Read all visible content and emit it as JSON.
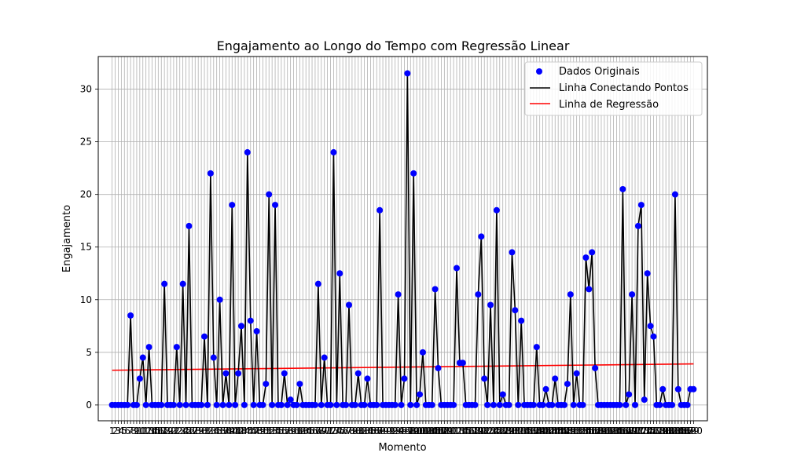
{
  "chart_data": {
    "type": "scatter",
    "title": "Engajamento ao Longo do Tempo com Regressão Linear",
    "xlabel": "Momento",
    "ylabel": "Engajamento",
    "xlim": [
      -3.5,
      194.5
    ],
    "ylim": [
      -1.5,
      33.1
    ],
    "y_ticks": [
      0,
      5,
      10,
      15,
      20,
      25,
      30
    ],
    "grid": true,
    "legend_position": "top-right",
    "x": [
      1,
      2,
      3,
      4,
      5,
      6,
      7,
      8,
      9,
      10,
      11,
      12,
      13,
      14,
      15,
      16,
      17,
      18,
      19,
      20,
      21,
      22,
      23,
      24,
      25,
      26,
      27,
      28,
      29,
      30,
      31,
      32,
      33,
      34,
      35,
      36,
      37,
      38,
      39,
      40,
      41,
      42,
      43,
      44,
      45,
      46,
      47,
      48,
      49,
      50,
      51,
      52,
      53,
      54,
      55,
      56,
      57,
      58,
      59,
      60,
      61,
      62,
      63,
      64,
      65,
      66,
      67,
      68,
      69,
      70,
      71,
      72,
      73,
      74,
      75,
      76,
      77,
      78,
      79,
      80,
      81,
      82,
      83,
      84,
      85,
      86,
      87,
      88,
      89,
      90,
      91,
      92,
      93,
      94,
      95,
      96,
      97,
      98,
      99,
      100,
      101,
      102,
      103,
      104,
      105,
      106,
      107,
      108,
      109,
      110,
      111,
      112,
      113,
      114,
      115,
      116,
      117,
      118,
      119,
      120,
      121,
      122,
      123,
      124,
      125,
      126,
      127,
      128,
      129,
      130,
      131,
      132,
      133,
      134,
      135,
      136,
      137,
      138,
      139,
      140,
      141,
      142,
      143,
      144,
      145,
      146,
      147,
      148,
      149,
      150,
      151,
      152,
      153,
      154,
      155,
      156,
      157,
      158,
      159,
      160,
      161,
      162,
      163,
      164,
      165,
      166,
      167,
      168,
      169,
      170,
      171,
      172,
      173,
      174,
      175,
      176,
      177,
      178,
      179,
      180,
      181,
      182,
      183,
      184,
      185,
      186,
      187,
      188,
      189,
      190
    ],
    "y": [
      0,
      0,
      0,
      0,
      0,
      0,
      8.5,
      0,
      0,
      2.5,
      4.5,
      0,
      5.5,
      0,
      0,
      0,
      0,
      11.5,
      0,
      0,
      0,
      5.5,
      0,
      11.5,
      0,
      17,
      0,
      0,
      0,
      0,
      6.5,
      0,
      22,
      4.5,
      0,
      10,
      0,
      3,
      0,
      19,
      0,
      3,
      7.5,
      0,
      24,
      8,
      0,
      7,
      0,
      0,
      2,
      20,
      0,
      19,
      0,
      0,
      3,
      0,
      0.5,
      0,
      0,
      2,
      0,
      0,
      0,
      0,
      0,
      11.5,
      0,
      4.5,
      0,
      0,
      24,
      0,
      12.5,
      0,
      0,
      9.5,
      0,
      0,
      3,
      0,
      0,
      2.5,
      0,
      0,
      0,
      18.5,
      0,
      0,
      0,
      0,
      0,
      10.5,
      0,
      2.5,
      31.5,
      0,
      22,
      0,
      1,
      5,
      0,
      0,
      0,
      11,
      3.5,
      0,
      0,
      0,
      0,
      0,
      13,
      4,
      4,
      0,
      0,
      0,
      0,
      10.5,
      16,
      2.5,
      0,
      9.5,
      0,
      18.5,
      0,
      1,
      0,
      0,
      14.5,
      9,
      0,
      8,
      0,
      0,
      0,
      0,
      5.5,
      0,
      0,
      1.5,
      0,
      0,
      2.5,
      0,
      0,
      0,
      2,
      10.5,
      0,
      3,
      0,
      0,
      14,
      11,
      14.5,
      3.5,
      0,
      0,
      0,
      0,
      0,
      0,
      0,
      0,
      20.5,
      0,
      1,
      10.5,
      0,
      17,
      19,
      0.5,
      12.5,
      7.5,
      6.5,
      0,
      0,
      1.5,
      0,
      0,
      0,
      20,
      1.5,
      0,
      0,
      0,
      1.5,
      1.5
    ],
    "regression": {
      "x_start": 1,
      "y_start": 3.3,
      "x_end": 190,
      "y_end": 3.9
    },
    "series": [
      {
        "name": "Dados Originais",
        "type": "scatter",
        "color": "#0000ff"
      },
      {
        "name": "Linha Conectando Pontos",
        "type": "line",
        "color": "#000000"
      },
      {
        "name": "Linha de Regressão",
        "type": "line",
        "color": "#ff0000"
      }
    ]
  }
}
